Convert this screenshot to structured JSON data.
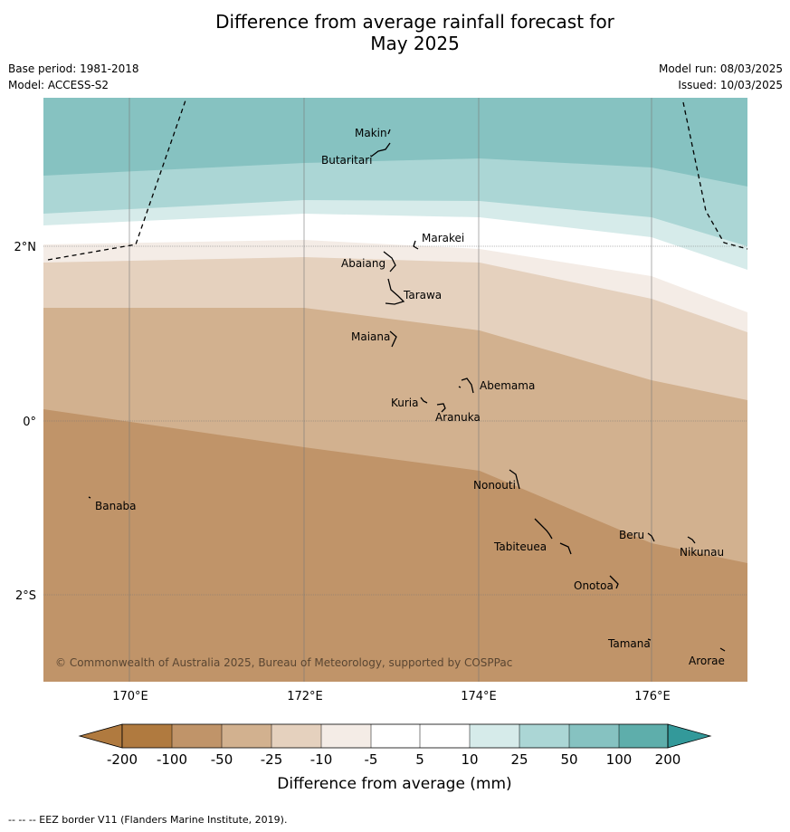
{
  "title_line1": "Difference from average rainfall forecast for",
  "title_line2": "May 2025",
  "base_period": "Base period: 1981-2018",
  "model": "Model: ACCESS-S2",
  "model_run": "Model run: 08/03/2025",
  "issued": "Issued: 10/03/2025",
  "copyright": "© Commonwealth of Australia 2025, Bureau of Meteorology, supported by COSPPac",
  "lon_labels": [
    "170°E",
    "172°E",
    "174°E",
    "176°E"
  ],
  "lat_labels": [
    "2°N",
    "0°",
    "2°S"
  ],
  "places": [
    {
      "name": "Makin"
    },
    {
      "name": "Butaritari"
    },
    {
      "name": "Marakei"
    },
    {
      "name": "Abaiang"
    },
    {
      "name": "Tarawa"
    },
    {
      "name": "Maiana"
    },
    {
      "name": "Abemama"
    },
    {
      "name": "Kuria"
    },
    {
      "name": "Aranuka"
    },
    {
      "name": "Nonouti"
    },
    {
      "name": "Banaba"
    },
    {
      "name": "Beru"
    },
    {
      "name": "Tabiteuea"
    },
    {
      "name": "Nikunau"
    },
    {
      "name": "Onotoa"
    },
    {
      "name": "Tamana"
    },
    {
      "name": "Arorae"
    }
  ],
  "legend": {
    "title": "Difference from average (mm)",
    "ticks": [
      "-200",
      "-100",
      "-50",
      "-25",
      "-10",
      "-5",
      "5",
      "10",
      "25",
      "50",
      "100",
      "200"
    ],
    "colors": {
      "below_min": "#b07a3f",
      "lt_-100": "#c09469",
      "-100_-50": "#d2b18f",
      "-50_-25": "#e5d1be",
      "-25_-10": "#f4ece6",
      "-10_10": "#ffffff",
      "10_25": "#d6ebea",
      "25_50": "#abd6d5",
      "50_100": "#86c2c1",
      "100_200": "#5eaeab",
      "above_max": "#33999a"
    }
  },
  "footnote": "--  --  -- EEZ border V11 (Flanders Marine Institute, 2019)."
}
